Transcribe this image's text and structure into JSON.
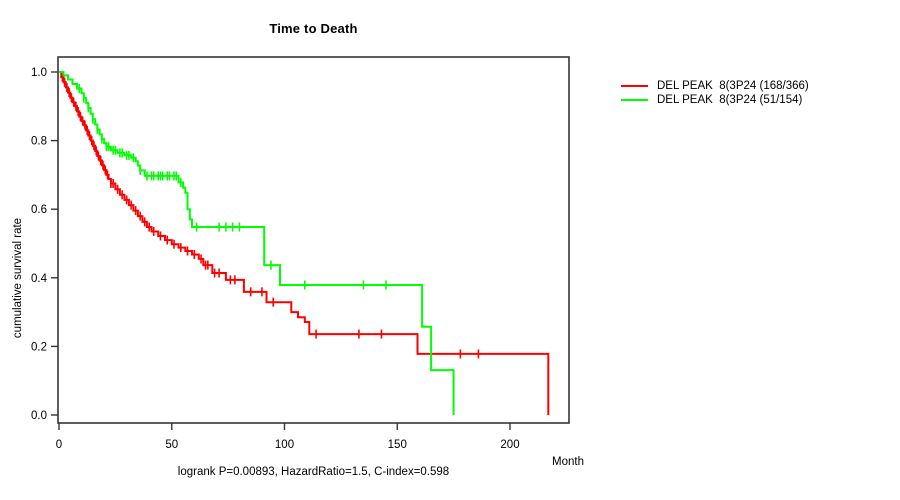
{
  "title": "Time to Death",
  "axes": {
    "y_label": "cumulative survival rate",
    "x_label": "Month",
    "y_ticks": [
      "0.0",
      "0.2",
      "0.4",
      "0.6",
      "0.8",
      "1.0"
    ],
    "x_ticks": [
      "0",
      "50",
      "100",
      "150",
      "200"
    ]
  },
  "legend": [
    {
      "label": "DEL PEAK  8(3P24 (168/366)",
      "color": "#ff0000"
    },
    {
      "label": "DEL PEAK  8(3P24 (51/154)",
      "color": "#00ff00"
    }
  ],
  "footer": "logrank P=0.00893, HazardRatio=1.5, C-index=0.598",
  "colors": {
    "series_red": "#ff0000",
    "series_green": "#00ff00",
    "frame": "#363636",
    "text": "#000000"
  },
  "chart_data": {
    "type": "line",
    "subtype": "kaplan-meier-step",
    "title": "Time to Death",
    "xlabel": "Month",
    "ylabel": "cumulative survival rate",
    "xlim": [
      0,
      226
    ],
    "ylim": [
      0.0,
      1.0
    ],
    "x_tick_values": [
      0,
      50,
      100,
      150,
      200
    ],
    "y_tick_values": [
      0.0,
      0.2,
      0.4,
      0.6,
      0.8,
      1.0
    ],
    "grid": false,
    "legend_position": "right-outside",
    "annotation": "logrank P=0.00893, HazardRatio=1.5, C-index=0.598",
    "series": [
      {
        "name": "DEL PEAK  8(3P24 (168/366)",
        "color": "#ff0000",
        "steps": [
          [
            0,
            1.0
          ],
          [
            1,
            0.985
          ],
          [
            2,
            0.97
          ],
          [
            3,
            0.955
          ],
          [
            4,
            0.94
          ],
          [
            5,
            0.925
          ],
          [
            6,
            0.912
          ],
          [
            7,
            0.9
          ],
          [
            8,
            0.885
          ],
          [
            9,
            0.87
          ],
          [
            10,
            0.857
          ],
          [
            11,
            0.845
          ],
          [
            12,
            0.83
          ],
          [
            13,
            0.815
          ],
          [
            14,
            0.8
          ],
          [
            15,
            0.785
          ],
          [
            16,
            0.77
          ],
          [
            17,
            0.755
          ],
          [
            18,
            0.742
          ],
          [
            19,
            0.728
          ],
          [
            20,
            0.714
          ],
          [
            21,
            0.7
          ],
          [
            22,
            0.688
          ],
          [
            23,
            0.675
          ],
          [
            25,
            0.658
          ],
          [
            27,
            0.642
          ],
          [
            29,
            0.627
          ],
          [
            31,
            0.612
          ],
          [
            33,
            0.596
          ],
          [
            35,
            0.58
          ],
          [
            37,
            0.563
          ],
          [
            39,
            0.548
          ],
          [
            41,
            0.535
          ],
          [
            44,
            0.522
          ],
          [
            47,
            0.51
          ],
          [
            50,
            0.498
          ],
          [
            53,
            0.488
          ],
          [
            56,
            0.478
          ],
          [
            59,
            0.468
          ],
          [
            62,
            0.455
          ],
          [
            64,
            0.437
          ],
          [
            68,
            0.414
          ],
          [
            74,
            0.394
          ],
          [
            82,
            0.359
          ],
          [
            92,
            0.329
          ],
          [
            103,
            0.3
          ],
          [
            106,
            0.285
          ],
          [
            109,
            0.271
          ],
          [
            111,
            0.236
          ],
          [
            159,
            0.178
          ],
          [
            217,
            0.0
          ]
        ],
        "censor_months": [
          1.5,
          2.5,
          3.5,
          4.5,
          5.5,
          6.5,
          7.5,
          8.5,
          9.5,
          10.5,
          11.5,
          12.5,
          13.5,
          14.5,
          15.5,
          16.5,
          17.5,
          18.5,
          19.5,
          20.5,
          21.5,
          23,
          24,
          26,
          28,
          30,
          32,
          34,
          36,
          38,
          40,
          42,
          45,
          48,
          51,
          54,
          57,
          60,
          63,
          65,
          66,
          69,
          71,
          76,
          78,
          85,
          90,
          95,
          114,
          133,
          143,
          178,
          186
        ]
      },
      {
        "name": "DEL PEAK  8(3P24 (51/154)",
        "color": "#00ff00",
        "steps": [
          [
            0,
            1.0
          ],
          [
            2,
            0.99
          ],
          [
            4,
            0.978
          ],
          [
            6,
            0.965
          ],
          [
            8,
            0.952
          ],
          [
            10,
            0.938
          ],
          [
            11,
            0.924
          ],
          [
            12,
            0.91
          ],
          [
            13,
            0.895
          ],
          [
            14,
            0.878
          ],
          [
            15,
            0.862
          ],
          [
            16,
            0.847
          ],
          [
            17,
            0.832
          ],
          [
            18,
            0.818
          ],
          [
            19,
            0.805
          ],
          [
            20,
            0.792
          ],
          [
            21,
            0.782
          ],
          [
            23,
            0.772
          ],
          [
            26,
            0.764
          ],
          [
            29,
            0.757
          ],
          [
            32,
            0.75
          ],
          [
            34,
            0.74
          ],
          [
            35,
            0.727
          ],
          [
            36,
            0.713
          ],
          [
            38,
            0.697
          ],
          [
            53,
            0.678
          ],
          [
            55,
            0.663
          ],
          [
            56,
            0.648
          ],
          [
            57,
            0.6
          ],
          [
            58,
            0.57
          ],
          [
            59,
            0.548
          ],
          [
            91,
            0.437
          ],
          [
            98,
            0.379
          ],
          [
            161,
            0.257
          ],
          [
            165,
            0.131
          ],
          [
            175,
            0.0
          ]
        ],
        "censor_months": [
          9,
          11,
          13,
          15,
          17,
          19,
          21,
          22,
          24,
          25,
          27,
          28,
          30,
          31,
          33,
          36,
          39,
          41,
          42,
          44,
          45,
          46,
          48,
          49,
          51,
          52,
          54,
          61,
          71,
          74,
          77,
          80,
          94,
          109,
          135,
          145
        ]
      }
    ]
  }
}
